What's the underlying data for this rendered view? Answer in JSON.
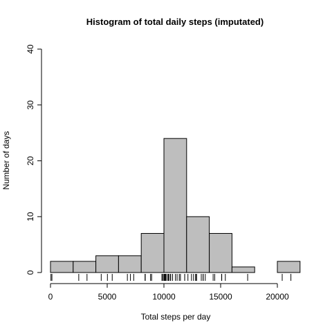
{
  "chart_data": {
    "type": "bar",
    "title": "Histogram of total daily steps (imputated)",
    "xlabel": "Total steps per day",
    "ylabel": "Number of days",
    "bin_edges": [
      0,
      2000,
      4000,
      6000,
      8000,
      10000,
      12000,
      14000,
      16000,
      18000,
      20000,
      22000
    ],
    "values": [
      2,
      2,
      3,
      3,
      7,
      24,
      10,
      7,
      1,
      0,
      2
    ],
    "xticks": [
      0,
      5000,
      10000,
      15000,
      20000
    ],
    "yticks": [
      0,
      10,
      20,
      30,
      40
    ],
    "ylim": [
      0,
      40
    ],
    "grid": false,
    "rug": [
      41,
      126,
      2492,
      3219,
      4472,
      5018,
      5441,
      6778,
      7047,
      7336,
      8334,
      8355,
      8821,
      8918,
      9819,
      9900,
      10000,
      10056,
      10119,
      10139,
      10183,
      10304,
      10395,
      10439,
      10571,
      10600,
      10765,
      11015,
      11162,
      11352,
      11458,
      11829,
      11834,
      12116,
      12426,
      12608,
      12787,
      12811,
      12883,
      13294,
      13452,
      13460,
      13646,
      14339,
      14478,
      15084,
      15098,
      15414,
      17382,
      20427,
      21194
    ]
  }
}
